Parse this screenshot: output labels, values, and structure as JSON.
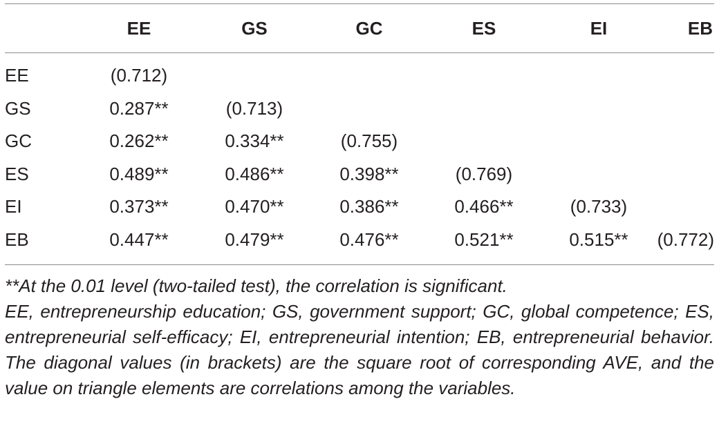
{
  "table": {
    "headers": [
      "",
      "EE",
      "GS",
      "GC",
      "ES",
      "EI",
      "EB"
    ],
    "rows": [
      {
        "label": "EE",
        "cells": [
          "(0.712)",
          "",
          "",
          "",
          "",
          ""
        ]
      },
      {
        "label": "GS",
        "cells": [
          "0.287**",
          "(0.713)",
          "",
          "",
          "",
          ""
        ]
      },
      {
        "label": "GC",
        "cells": [
          "0.262**",
          "0.334**",
          "(0.755)",
          "",
          "",
          ""
        ]
      },
      {
        "label": "ES",
        "cells": [
          "0.489**",
          "0.486**",
          "0.398**",
          "(0.769)",
          "",
          ""
        ]
      },
      {
        "label": "EI",
        "cells": [
          "0.373**",
          "0.470**",
          "0.386**",
          "0.466**",
          "(0.733)",
          ""
        ]
      },
      {
        "label": "EB",
        "cells": [
          "0.447**",
          "0.479**",
          "0.476**",
          "0.521**",
          "0.515**",
          "(0.772)"
        ]
      }
    ]
  },
  "notes": {
    "significance": "**At the 0.01 level (two-tailed test), the correlation is significant.",
    "abbreviations": "EE, entrepreneurship education; GS, government support; GC, global competence; ES, entrepreneurial self-efficacy; EI, entrepreneurial intention; EB, entrepreneurial behavior. The diagonal values (in brackets) are the square root of corresponding AVE, and the value on triangle elements are correlations among the variables."
  }
}
